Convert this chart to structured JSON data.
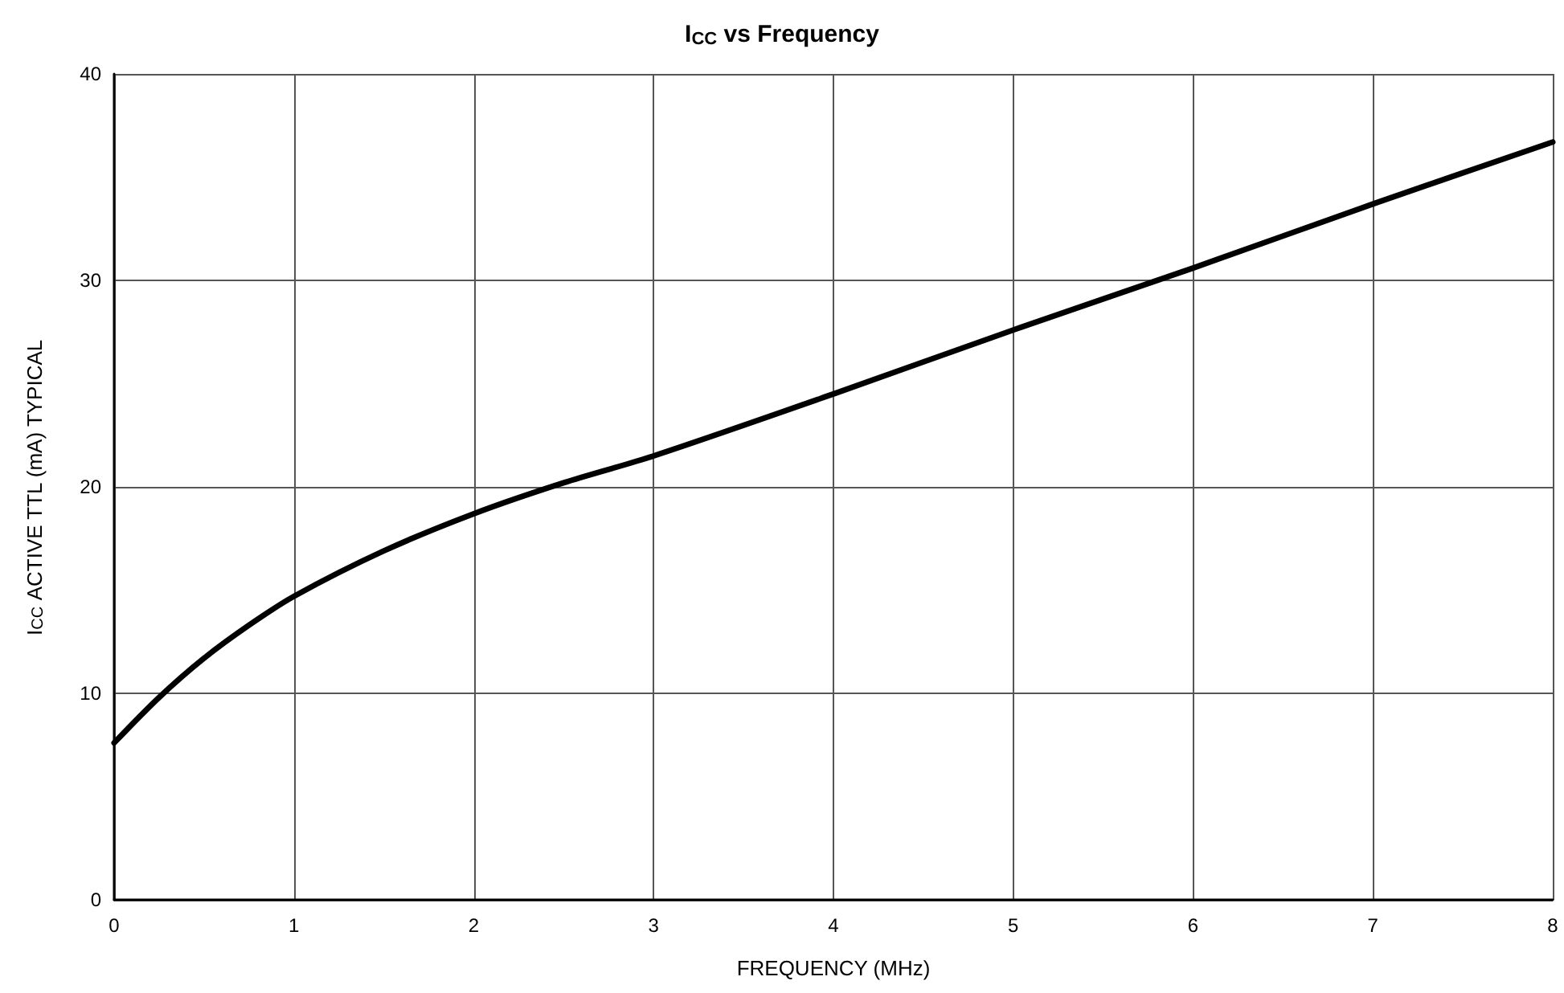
{
  "chart_data": {
    "type": "line",
    "title": "I$_{CC}$ vs Frequency",
    "xlabel": "FREQUENCY (MHz)",
    "ylabel": "I$_{CC}$ ACTIVE TTL (mA) TYPICAL",
    "x": [
      0,
      0.25,
      0.5,
      0.75,
      1,
      1.5,
      2,
      2.5,
      3,
      4,
      5,
      6,
      7,
      8
    ],
    "series": [
      {
        "color": "#000000",
        "values": [
          7.6,
          9.8,
          11.7,
          13.3,
          14.7,
          16.9,
          18.7,
          20.2,
          21.5,
          24.5,
          27.6,
          30.6,
          33.7,
          36.7
        ]
      }
    ],
    "xlim": [
      0,
      8
    ],
    "xticks": [
      0,
      1,
      2,
      3,
      4,
      5,
      6,
      7,
      8
    ],
    "ylim": [
      0,
      40
    ],
    "yticks": [
      0,
      10,
      20,
      30,
      40
    ],
    "grid": true,
    "marker": "none",
    "line_style": "solid"
  }
}
